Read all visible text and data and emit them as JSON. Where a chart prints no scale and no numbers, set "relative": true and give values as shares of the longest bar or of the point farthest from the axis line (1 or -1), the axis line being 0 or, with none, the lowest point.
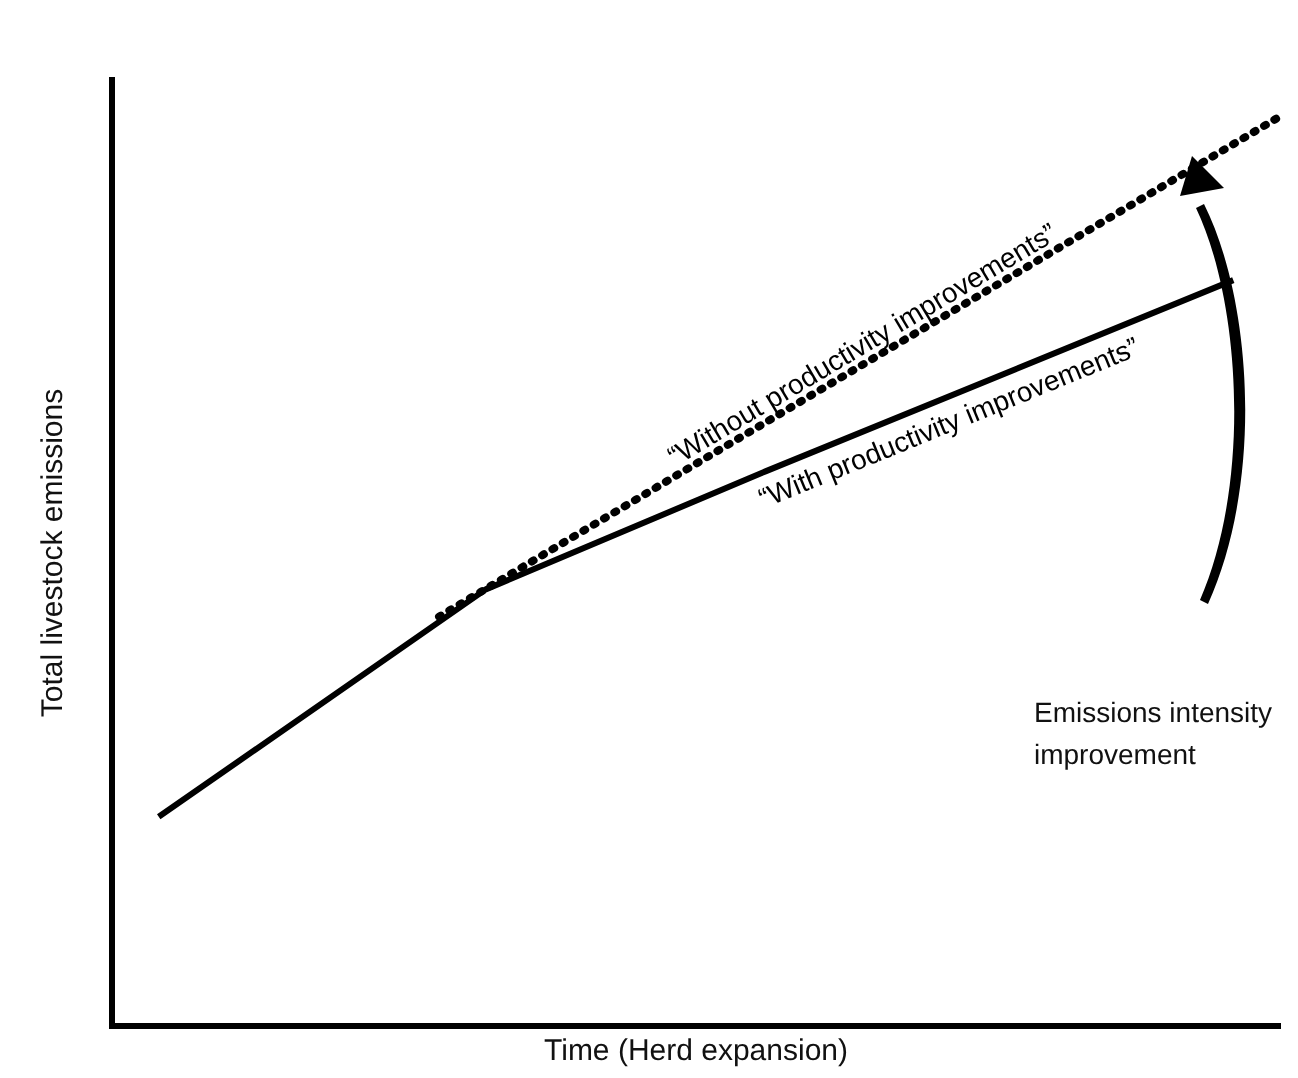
{
  "chart_data": {
    "type": "line",
    "xlabel": "Time (Herd expansion)",
    "ylabel": "Total livestock emissions",
    "categories": [
      null,
      null,
      null,
      null,
      null,
      null,
      null,
      null,
      null,
      null,
      null,
      null,
      null,
      null,
      null,
      null,
      null,
      null,
      null,
      null,
      null,
      null,
      null,
      null,
      null,
      null
    ],
    "series": [
      {
        "name": "“Without productivity improvements”",
        "color": "#000000",
        "line_style": "dotted",
        "values": [
          null,
          null,
          null,
          null,
          null,
          null,
          null,
          0.45,
          null,
          null,
          null,
          null,
          null,
          null,
          null,
          null,
          null,
          null,
          null,
          null,
          null,
          null,
          null,
          null,
          null,
          1
        ]
      },
      {
        "name": "“With productivity improvements”",
        "color": "#000000",
        "line_style": "solid",
        "values": [
          null,
          0.23,
          null,
          null,
          null,
          null,
          null,
          null,
          0.48,
          null,
          null,
          null,
          null,
          null,
          0.61,
          null,
          null,
          null,
          null,
          null,
          null,
          null,
          null,
          null,
          0.82,
          null
        ]
      }
    ],
    "relative": true,
    "grid": false,
    "legend": false,
    "tick_labels": false,
    "marker": "none",
    "annotations": [
      "Emissions intensity improvement"
    ]
  }
}
